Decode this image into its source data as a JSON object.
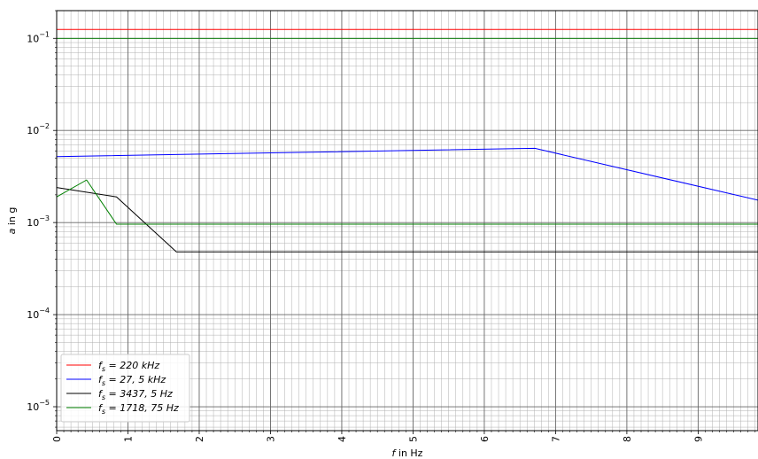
{
  "chart_data": {
    "type": "line",
    "xlabel_var": "f",
    "xlabel_rest": " in Hz",
    "ylabel_var": "a",
    "ylabel_rest": " in g",
    "x_scale": "linear",
    "y_scale": "log",
    "xlim": [
      0,
      9.84
    ],
    "ylim": [
      5.5e-06,
      0.2
    ],
    "x_ticks": [
      0,
      1,
      2,
      3,
      4,
      5,
      6,
      7,
      8,
      9
    ],
    "x_tick_labels": [
      "0",
      "1",
      "2",
      "3",
      "4",
      "5",
      "6",
      "7",
      "8",
      "9"
    ],
    "y_ticks": [
      1e-05,
      0.0001,
      0.001,
      0.01,
      0.1
    ],
    "y_tick_bases": [
      "10",
      "10",
      "10",
      "10",
      "10"
    ],
    "y_tick_exps": [
      "−5",
      "−4",
      "−3",
      "−2",
      "−1"
    ],
    "grid": true,
    "legend_position": "lower-left",
    "series": [
      {
        "name_var": "f",
        "name_sub": "s",
        "name_rest": " = 220 kHz",
        "color": "#ff0000",
        "points": [
          [
            0,
            0.125
          ],
          [
            9.84,
            0.125
          ]
        ]
      },
      {
        "name_var": "f",
        "name_sub": "s",
        "name_rest": " = 27, 5 kHz",
        "color": "#0000ff",
        "points": [
          [
            0,
            0.0052
          ],
          [
            6.71,
            0.0064
          ],
          [
            9.84,
            0.00175
          ]
        ]
      },
      {
        "name_var": "f",
        "name_sub": "s",
        "name_rest": " = 3437, 5 Hz",
        "color": "#000000",
        "points": [
          [
            0,
            0.0024
          ],
          [
            0.84,
            0.0019
          ],
          [
            1.68,
            0.00048
          ],
          [
            9.84,
            0.00048
          ]
        ]
      },
      {
        "name_var": "f",
        "name_sub": "s",
        "name_rest": " = 1718, 75 Hz",
        "color": "#008000",
        "points": [
          [
            0,
            0.0019
          ],
          [
            0.42,
            0.0029
          ],
          [
            0.84,
            0.00096
          ],
          [
            9.84,
            0.00096
          ]
        ]
      }
    ],
    "reference_lines": [
      {
        "y": 0.1,
        "color": "#008000"
      }
    ]
  }
}
